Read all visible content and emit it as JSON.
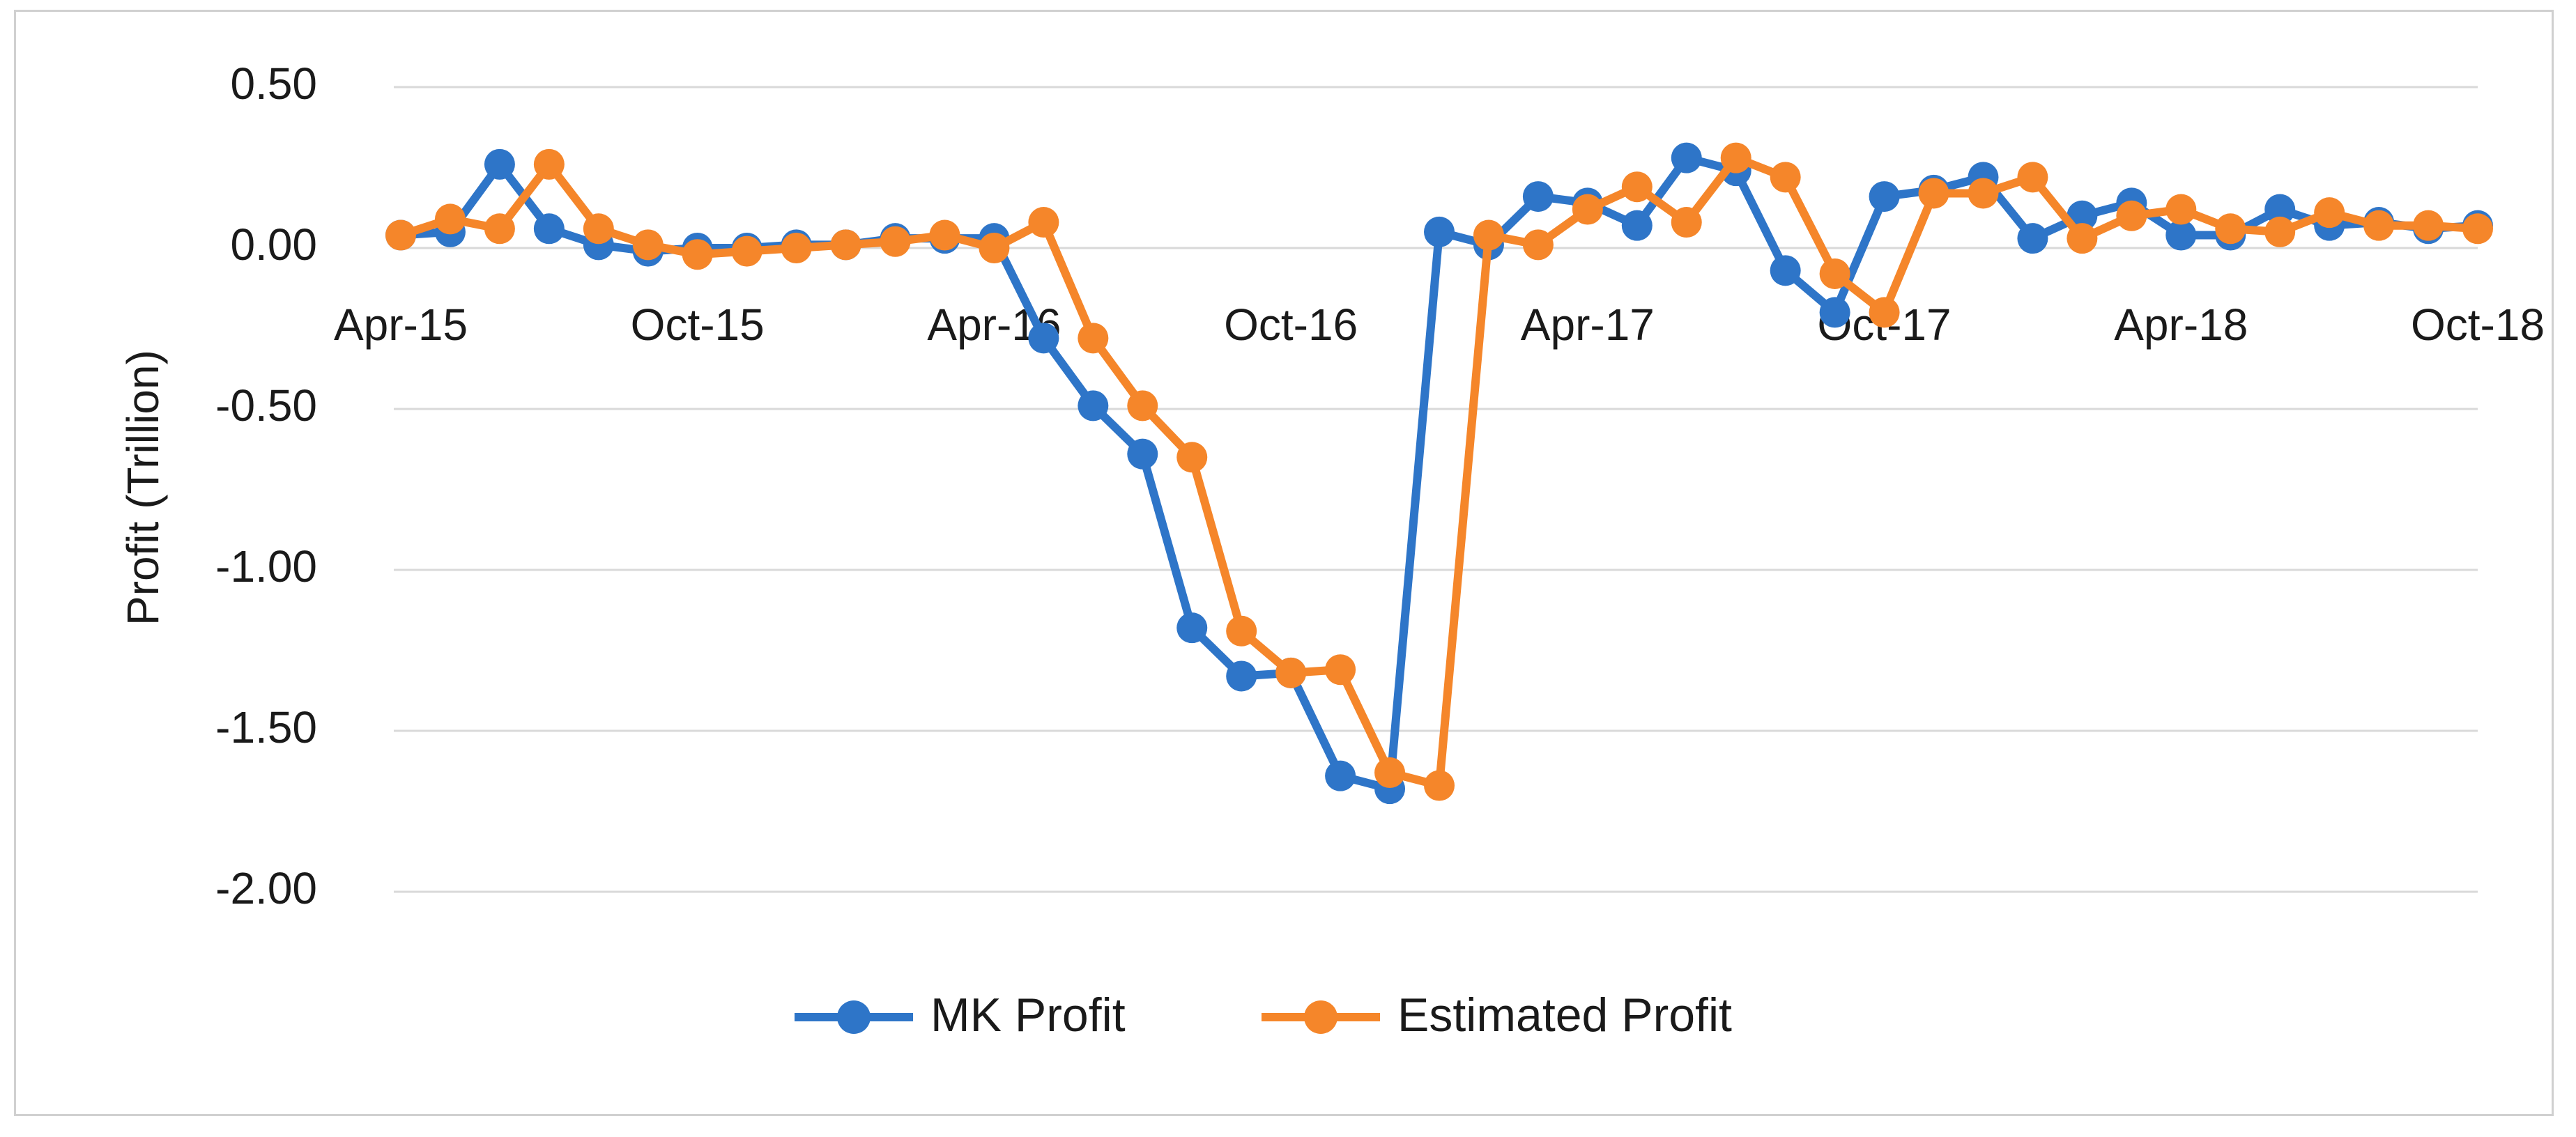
{
  "chart_data": {
    "type": "line",
    "title": "",
    "xlabel": "",
    "ylabel": "Profit (Trillion)",
    "ylim": [
      -2.0,
      0.5
    ],
    "y_ticks": [
      "0.50",
      "0.00",
      "-0.50",
      "-1.00",
      "-1.50",
      "-2.00"
    ],
    "y_tick_values": [
      0.5,
      0.0,
      -0.5,
      -1.0,
      -1.5,
      -2.0
    ],
    "x_tick_labels": [
      "Apr-15",
      "Oct-15",
      "Apr-16",
      "Oct-16",
      "Apr-17",
      "Oct-17",
      "Apr-18",
      "Oct-18"
    ],
    "x_tick_indices": [
      0,
      6,
      12,
      18,
      24,
      30,
      36,
      42
    ],
    "x": [
      "Apr-15",
      "May-15",
      "Jun-15",
      "Jul-15",
      "Aug-15",
      "Sep-15",
      "Oct-15",
      "Nov-15",
      "Dec-15",
      "Jan-16",
      "Feb-16",
      "Mar-16",
      "Apr-16",
      "May-16",
      "Jun-16",
      "Jul-16",
      "Aug-16",
      "Sep-16",
      "Oct-16",
      "Nov-16",
      "Dec-16",
      "Jan-17",
      "Feb-17",
      "Mar-17",
      "Apr-17",
      "May-17",
      "Jun-17",
      "Jul-17",
      "Aug-17",
      "Sep-17",
      "Oct-17",
      "Nov-17",
      "Dec-17",
      "Jan-18",
      "Feb-18",
      "Mar-18",
      "Apr-18",
      "May-18",
      "Jun-18",
      "Jul-18",
      "Aug-18",
      "Sep-18",
      "Oct-18"
    ],
    "grid": true,
    "legend_position": "bottom",
    "series": [
      {
        "name": "MK Profit",
        "color": "#2e75c8",
        "values": [
          0.04,
          0.05,
          0.26,
          0.06,
          0.01,
          -0.01,
          0.0,
          0.0,
          0.01,
          0.01,
          0.03,
          0.03,
          0.03,
          -0.28,
          -0.49,
          -0.64,
          -1.18,
          -1.33,
          -1.32,
          -1.64,
          -1.68,
          0.05,
          0.01,
          0.16,
          0.14,
          0.07,
          0.28,
          0.24,
          -0.07,
          -0.2,
          0.16,
          0.18,
          0.22,
          0.03,
          0.1,
          0.14,
          0.04,
          0.04,
          0.12,
          0.07,
          0.08,
          0.06,
          0.07
        ]
      },
      {
        "name": "Estimated Profit",
        "color": "#f5862a",
        "values": [
          0.04,
          0.09,
          0.06,
          0.26,
          0.06,
          0.01,
          -0.02,
          -0.01,
          0.0,
          0.01,
          0.02,
          0.04,
          0.0,
          0.08,
          -0.28,
          -0.49,
          -0.65,
          -1.19,
          -1.32,
          -1.31,
          -1.63,
          -1.67,
          0.04,
          0.01,
          0.12,
          0.19,
          0.08,
          0.28,
          0.22,
          -0.08,
          -0.2,
          0.17,
          0.17,
          0.22,
          0.03,
          0.1,
          0.12,
          0.06,
          0.05,
          0.11,
          0.07,
          0.07,
          0.06
        ]
      }
    ]
  }
}
